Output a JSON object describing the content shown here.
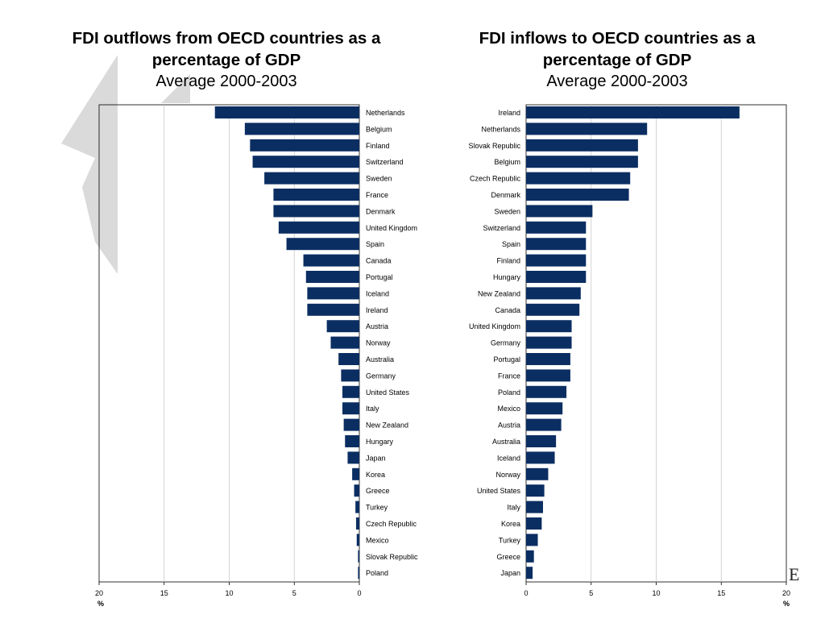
{
  "colors": {
    "bar": "#0b2e62",
    "grid": "#c8c8c8",
    "axis": "#000000",
    "decoration": "#dadada"
  },
  "left": {
    "title": "FDI outflows from OECD countries as a percentage of GDP",
    "subtitle": "Average 2000-2003",
    "xunit": "%"
  },
  "right": {
    "title": "FDI inflows to OECD countries as a percentage of GDP",
    "subtitle": "Average 2000-2003",
    "xunit": "%"
  },
  "corner_glyph": "E",
  "chart_data": [
    {
      "type": "bar",
      "orientation": "horizontal",
      "direction": "leftward",
      "title": "FDI outflows from OECD countries as a percentage of GDP",
      "subtitle": "Average 2000-2003",
      "xlabel": "%",
      "xlim": [
        0,
        20
      ],
      "xticks": [
        20,
        15,
        10,
        5,
        0
      ],
      "grid": true,
      "categories": [
        "Netherlands",
        "Belgium",
        "Finland",
        "Switzerland",
        "Sweden",
        "France",
        "Denmark",
        "United Kingdom",
        "Spain",
        "Canada",
        "Portugal",
        "Iceland",
        "Ireland",
        "Austria",
        "Norway",
        "Australia",
        "Germany",
        "United States",
        "Italy",
        "New Zealand",
        "Hungary",
        "Japan",
        "Korea",
        "Greece",
        "Turkey",
        "Czech Republic",
        "Mexico",
        "Slovak Republic",
        "Poland"
      ],
      "values": [
        11.1,
        8.8,
        8.4,
        8.2,
        7.3,
        6.6,
        6.6,
        6.2,
        5.6,
        4.3,
        4.1,
        4.0,
        4.0,
        2.5,
        2.2,
        1.6,
        1.4,
        1.3,
        1.3,
        1.2,
        1.1,
        0.9,
        0.55,
        0.4,
        0.3,
        0.25,
        0.2,
        0.1,
        0.1
      ]
    },
    {
      "type": "bar",
      "orientation": "horizontal",
      "direction": "rightward",
      "title": "FDI inflows to OECD countries as a percentage of GDP",
      "subtitle": "Average 2000-2003",
      "xlabel": "%",
      "xlim": [
        0,
        20
      ],
      "xticks": [
        0,
        5,
        10,
        15,
        20
      ],
      "grid": true,
      "categories": [
        "Ireland",
        "Netherlands",
        "Slovak Republic",
        "Belgium",
        "Czech Republic",
        "Denmark",
        "Sweden",
        "Switzerland",
        "Spain",
        "Finland",
        "Hungary",
        "New Zealand",
        "Canada",
        "United Kingdom",
        "Germany",
        "Portugal",
        "France",
        "Poland",
        "Mexico",
        "Austria",
        "Australia",
        "Iceland",
        "Norway",
        "United States",
        "Italy",
        "Korea",
        "Turkey",
        "Greece",
        "Japan"
      ],
      "values": [
        16.4,
        9.3,
        8.6,
        8.6,
        8.0,
        7.9,
        5.1,
        4.6,
        4.6,
        4.6,
        4.6,
        4.2,
        4.1,
        3.5,
        3.5,
        3.4,
        3.4,
        3.1,
        2.8,
        2.7,
        2.3,
        2.2,
        1.7,
        1.4,
        1.3,
        1.2,
        0.9,
        0.6,
        0.5
      ]
    }
  ]
}
